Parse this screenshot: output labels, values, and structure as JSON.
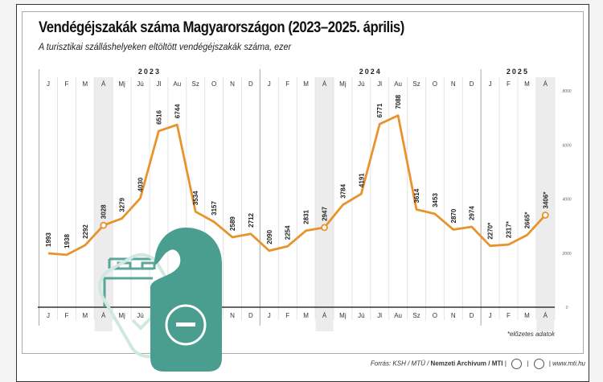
{
  "chart_data": {
    "type": "line",
    "title": "Vendégéjszakák száma Magyarországon (2023–2025. április)",
    "subtitle": "A turisztikai szálláshelyeken eltöltött vendégéjszakák száma, ezer",
    "years": [
      "2023",
      "2024",
      "2025"
    ],
    "categories": [
      "J",
      "F",
      "M",
      "Á",
      "Mj",
      "Jú",
      "Jl",
      "Au",
      "Sz",
      "O",
      "N",
      "D",
      "J",
      "F",
      "M",
      "Á",
      "Mj",
      "Jú",
      "Jl",
      "Au",
      "Sz",
      "O",
      "N",
      "D",
      "J",
      "F",
      "M",
      "Á"
    ],
    "values": [
      1993,
      1938,
      2292,
      3028,
      3279,
      4030,
      6516,
      6744,
      3534,
      3157,
      2589,
      2712,
      2090,
      2254,
      2831,
      2947,
      3784,
      4191,
      6771,
      7088,
      3614,
      3453,
      2870,
      2974,
      2270,
      2317,
      2665,
      3406
    ],
    "value_labels": [
      "1993",
      "1938",
      "2292",
      "3028",
      "3279",
      "4030",
      "6516",
      "6744",
      "3534",
      "3157",
      "2589",
      "2712",
      "2090",
      "2254",
      "2831",
      "2947",
      "3784",
      "4191",
      "6771",
      "7088",
      "3614",
      "3453",
      "2870",
      "2974",
      "2270*",
      "2317*",
      "2665*",
      "3406*"
    ],
    "highlighted_points": [
      "Á 2023",
      "Á 2024",
      "Á 2025"
    ],
    "y_ticks": [
      "0",
      "2000",
      "4000",
      "6000",
      "8000"
    ],
    "ylim": [
      0,
      8000
    ],
    "grid": true,
    "line_color": "#e8932c",
    "note": "*előzetes adatok"
  },
  "footer": {
    "source": "Forrás: KSH / MTÜ / ",
    "archive": "Nemzeti Archivum / MTI",
    "url": "www.mti.hu"
  },
  "overlay": {
    "icon": "do-not-disturb-door-hanger-icon",
    "color": "#4a9e90"
  }
}
